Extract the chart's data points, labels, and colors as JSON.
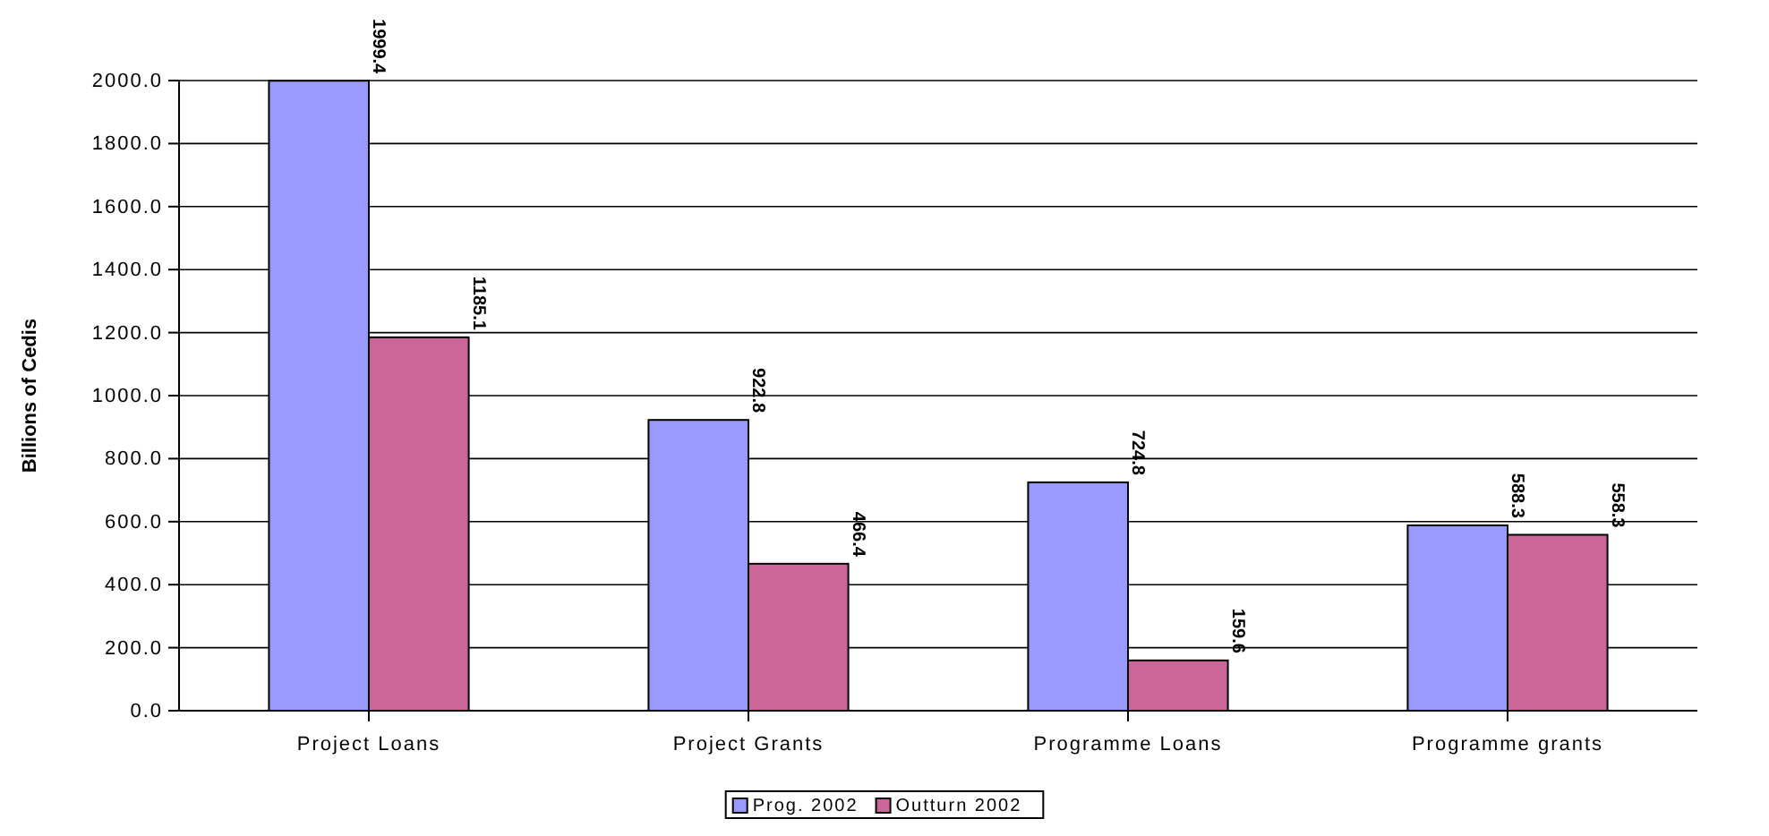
{
  "chart_data": {
    "type": "bar",
    "ylabel": "Billions of Cedis",
    "categories": [
      "Project Loans",
      "Project Grants",
      "Programme Loans",
      "Programme grants"
    ],
    "series": [
      {
        "name": "Prog. 2002",
        "color": "#9999ff",
        "values": [
          1999.4,
          922.8,
          724.8,
          588.3
        ]
      },
      {
        "name": "Outturn 2002",
        "color": "#cc6699",
        "values": [
          1185.1,
          466.4,
          159.6,
          558.3
        ]
      }
    ],
    "ylim": [
      0,
      2000
    ],
    "yticks": [
      {
        "value": 0,
        "label": "0.0"
      },
      {
        "value": 200,
        "label": "200.0"
      },
      {
        "value": 400,
        "label": "400.0"
      },
      {
        "value": 600,
        "label": "600.0"
      },
      {
        "value": 800,
        "label": "800.0"
      },
      {
        "value": 1000,
        "label": "1000.0"
      },
      {
        "value": 1200,
        "label": "1200.0"
      },
      {
        "value": 1400,
        "label": "1400.0"
      },
      {
        "value": 1600,
        "label": "1600.0"
      },
      {
        "value": 1800,
        "label": "1800.0"
      },
      {
        "value": 2000,
        "label": "2000.0"
      }
    ],
    "grid": "y",
    "data_labels": true,
    "legend": "bottom"
  }
}
